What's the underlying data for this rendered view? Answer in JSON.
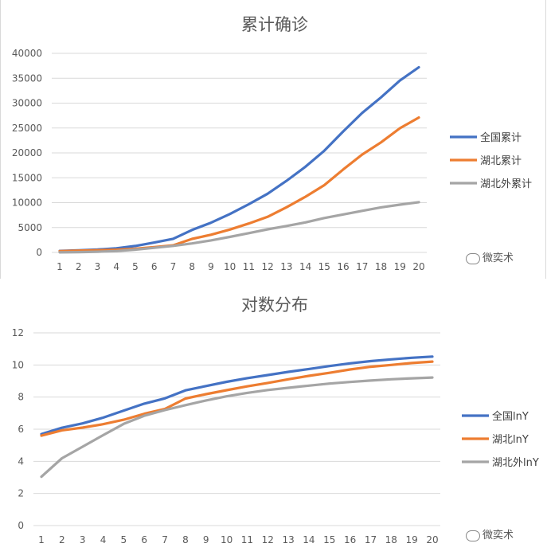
{
  "chart_data": [
    {
      "type": "line",
      "title": "累计确诊",
      "x": [
        1,
        2,
        3,
        4,
        5,
        6,
        7,
        8,
        9,
        10,
        11,
        12,
        13,
        14,
        15,
        16,
        17,
        18,
        19,
        20
      ],
      "ylim": [
        0,
        40000
      ],
      "yticks": [
        0,
        5000,
        10000,
        15000,
        20000,
        25000,
        30000,
        35000,
        40000
      ],
      "grid": true,
      "legend": "right",
      "series": [
        {
          "name": "全国累计",
          "color": "#4472c4",
          "values": [
            300,
            440,
            580,
            830,
            1290,
            1980,
            2740,
            4520,
            5970,
            7710,
            9680,
            11790,
            14380,
            17210,
            20440,
            24320,
            28020,
            31160,
            34550,
            37200
          ]
        },
        {
          "name": "湖北累计",
          "color": "#ed7d31",
          "values": [
            270,
            375,
            444,
            549,
            729,
            1052,
            1423,
            2714,
            3554,
            4586,
            5806,
            7153,
            9074,
            11177,
            13522,
            16678,
            19665,
            22112,
            24953,
            27100
          ]
        },
        {
          "name": "湖北外累计",
          "color": "#a5a5a5",
          "values": [
            21,
            66,
            136,
            280,
            560,
            930,
            1320,
            1810,
            2420,
            3120,
            3870,
            4640,
            5310,
            6030,
            6920,
            7640,
            8360,
            9050,
            9600,
            10100
          ]
        }
      ]
    },
    {
      "type": "line",
      "title": "对数分布",
      "x": [
        1,
        2,
        3,
        4,
        5,
        6,
        7,
        8,
        9,
        10,
        11,
        12,
        13,
        14,
        15,
        16,
        17,
        18,
        19,
        20
      ],
      "ylim": [
        0,
        12
      ],
      "yticks": [
        0,
        2,
        4,
        6,
        8,
        10,
        12
      ],
      "grid": true,
      "legend": "right",
      "series": [
        {
          "name": "全国lnY",
          "color": "#4472c4",
          "values": [
            5.7,
            6.09,
            6.36,
            6.72,
            7.16,
            7.59,
            7.92,
            8.42,
            8.69,
            8.95,
            9.18,
            9.37,
            9.57,
            9.75,
            9.93,
            10.1,
            10.24,
            10.35,
            10.45,
            10.52
          ]
        },
        {
          "name": "湖北lnY",
          "color": "#ed7d31",
          "values": [
            5.6,
            5.93,
            6.1,
            6.31,
            6.59,
            6.96,
            7.26,
            7.91,
            8.18,
            8.43,
            8.67,
            8.88,
            9.11,
            9.32,
            9.51,
            9.72,
            9.89,
            10.0,
            10.12,
            10.21
          ]
        },
        {
          "name": "湖北外lnY",
          "color": "#a5a5a5",
          "values": [
            3.04,
            4.19,
            4.91,
            5.63,
            6.33,
            6.84,
            7.19,
            7.5,
            7.79,
            8.05,
            8.26,
            8.44,
            8.58,
            8.71,
            8.84,
            8.94,
            9.03,
            9.11,
            9.17,
            9.22
          ]
        }
      ]
    }
  ],
  "watermarks": [
    {
      "text": "微奕术",
      "icon": "wechat-icon"
    },
    {
      "text": "微奕术",
      "icon": "wechat-icon"
    }
  ]
}
